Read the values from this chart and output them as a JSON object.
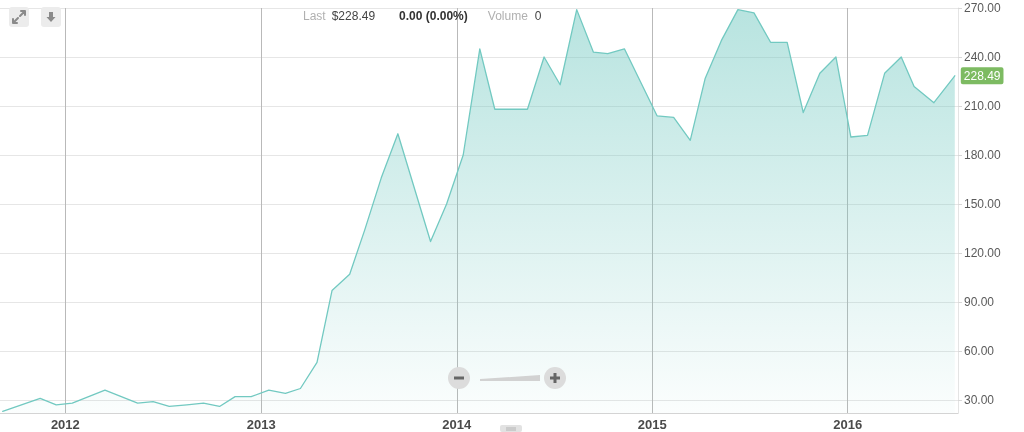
{
  "chart_data": {
    "type": "area",
    "annotations": [
      "Last",
      "$228.49",
      "0.00 (0.00%)",
      "Volume",
      "0"
    ],
    "x": [
      "2011-09-06",
      "2011-11-15",
      "2011-12-15",
      "2012-01-14",
      "2012-03-15",
      "2012-05-15",
      "2012-06-13",
      "2012-07-13",
      "2012-08-15",
      "2012-09-15",
      "2012-10-15",
      "2012-11-13",
      "2012-12-13",
      "2013-01-15",
      "2013-02-15",
      "2013-03-15",
      "2013-04-15",
      "2013-05-13",
      "2013-06-15",
      "2013-07-13",
      "2013-08-13",
      "2013-09-13",
      "2013-11-13",
      "2013-12-13",
      "2014-01-13",
      "2014-02-13",
      "2014-03-13",
      "2014-04-13",
      "2014-05-13",
      "2014-06-13",
      "2014-07-13",
      "2014-08-13",
      "2014-09-13",
      "2014-10-10",
      "2014-11-10",
      "2015-01-10",
      "2015-02-10",
      "2015-03-13",
      "2015-04-10",
      "2015-05-10",
      "2015-06-10",
      "2015-07-10",
      "2015-08-10",
      "2015-09-10",
      "2015-10-10",
      "2015-11-10",
      "2015-12-10",
      "2016-01-07",
      "2016-02-07",
      "2016-03-10",
      "2016-04-10",
      "2016-05-04",
      "2016-06-10",
      "2016-07-19"
    ],
    "series": [
      {
        "color": "#72c9c1",
        "values": [
          23,
          31,
          27,
          28,
          36,
          28,
          29,
          26,
          27,
          28,
          26,
          32,
          32,
          36,
          34,
          37,
          53,
          97,
          107,
          134,
          166,
          193,
          127,
          150,
          180,
          245,
          208,
          208,
          208,
          240,
          223,
          269,
          243,
          242,
          245,
          204,
          203,
          189,
          227,
          250,
          269,
          267,
          249,
          249,
          206,
          230,
          240,
          191,
          192,
          230,
          240,
          222,
          212,
          228.49
        ],
        "value_labels": [
          null,
          null,
          null,
          null,
          null,
          null,
          null,
          null,
          null,
          null,
          null,
          null,
          null,
          null,
          null,
          null,
          null,
          null,
          null,
          null,
          null,
          null,
          null,
          null,
          null,
          null,
          null,
          null,
          null,
          null,
          null,
          null,
          null,
          null,
          null,
          null,
          null,
          null,
          null,
          null,
          null,
          null,
          null,
          null,
          null,
          null,
          null,
          null,
          null,
          null,
          null,
          null,
          null,
          "228.49"
        ]
      }
    ],
    "xlim": [
      "2011-09-01",
      "2016-07-25"
    ],
    "xticks": [
      {
        "value": "2012-01-01",
        "label": "2012"
      },
      {
        "value": "2013-01-01",
        "label": "2013"
      },
      {
        "value": "2014-01-01",
        "label": "2014"
      },
      {
        "value": "2015-01-01",
        "label": "2015"
      },
      {
        "value": "2016-01-01",
        "label": "2016"
      }
    ],
    "ylim": [
      22,
      270
    ],
    "yticks": [
      {
        "value": 30,
        "label": "30.00"
      },
      {
        "value": 60,
        "label": "60.00"
      },
      {
        "value": 90,
        "label": "90.00"
      },
      {
        "value": 120,
        "label": "120.00"
      },
      {
        "value": 150,
        "label": "150.00"
      },
      {
        "value": 180,
        "label": "180.00"
      },
      {
        "value": 210,
        "label": "210.00"
      },
      {
        "value": 240,
        "label": "240.00"
      },
      {
        "value": 270,
        "label": "270.00"
      }
    ],
    "grid": true
  }
}
